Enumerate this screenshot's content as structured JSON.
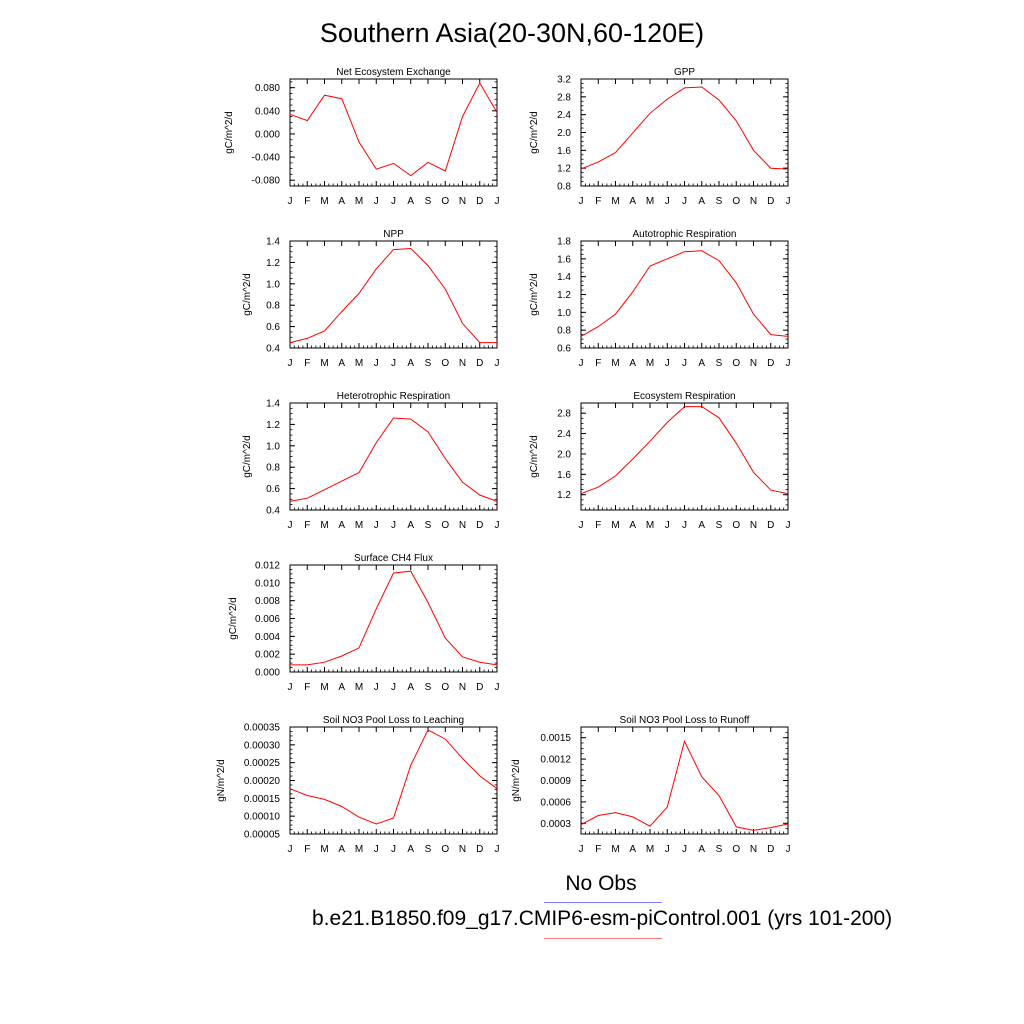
{
  "title": "Southern Asia(20-30N,60-120E)",
  "legend": {
    "obs_label": "No Obs",
    "obs_color": "#7b7bff",
    "model_label": "b.e21.B1850.f09_g17.CMIP6-esm-piControl.001 (yrs 101-200)",
    "model_color": "#ff0000"
  },
  "chart_data": [
    {
      "type": "line",
      "title": "Net Ecosystem Exchange",
      "ylabel": "gC/m^2/d",
      "categories": [
        "J",
        "F",
        "M",
        "A",
        "M",
        "J",
        "J",
        "A",
        "S",
        "O",
        "N",
        "D",
        "J"
      ],
      "ylim": [
        -0.09,
        0.095
      ],
      "yticks": [
        "0.080",
        "0.040",
        "0.000",
        "-0.040",
        "-0.080"
      ],
      "ytick_values": [
        0.08,
        0.04,
        0.0,
        -0.04,
        -0.08
      ],
      "series": [
        {
          "color": "#ff0000",
          "values": [
            0.034,
            0.023,
            0.067,
            0.061,
            -0.014,
            -0.061,
            -0.051,
            -0.072,
            -0.049,
            -0.064,
            0.03,
            0.088,
            0.037
          ]
        }
      ]
    },
    {
      "type": "line",
      "title": "GPP",
      "ylabel": "gC/m^2/d",
      "categories": [
        "J",
        "F",
        "M",
        "A",
        "M",
        "J",
        "J",
        "A",
        "S",
        "O",
        "N",
        "D",
        "J"
      ],
      "ylim": [
        0.8,
        3.2
      ],
      "yticks": [
        "3.2",
        "2.8",
        "2.4",
        "2.0",
        "1.6",
        "1.2",
        "0.8"
      ],
      "ytick_values": [
        3.2,
        2.8,
        2.4,
        2.0,
        1.6,
        1.2,
        0.8
      ],
      "series": [
        {
          "color": "#ff0000",
          "values": [
            1.18,
            1.34,
            1.55,
            1.99,
            2.43,
            2.75,
            3.0,
            3.02,
            2.73,
            2.26,
            1.6,
            1.2,
            1.18
          ]
        }
      ]
    },
    {
      "type": "line",
      "title": "NPP",
      "ylabel": "gC/m^2/d",
      "categories": [
        "J",
        "F",
        "M",
        "A",
        "M",
        "J",
        "J",
        "A",
        "S",
        "O",
        "N",
        "D",
        "J"
      ],
      "ylim": [
        0.4,
        1.4
      ],
      "yticks": [
        "1.4",
        "1.2",
        "1.0",
        "0.8",
        "0.6",
        "0.4"
      ],
      "ytick_values": [
        1.4,
        1.2,
        1.0,
        0.8,
        0.6,
        0.4
      ],
      "series": [
        {
          "color": "#ff0000",
          "values": [
            0.45,
            0.49,
            0.56,
            0.74,
            0.91,
            1.14,
            1.32,
            1.33,
            1.17,
            0.95,
            0.63,
            0.45,
            0.45
          ]
        }
      ]
    },
    {
      "type": "line",
      "title": "Autotrophic Respiration",
      "ylabel": "gC/m^2/d",
      "categories": [
        "J",
        "F",
        "M",
        "A",
        "M",
        "J",
        "J",
        "A",
        "S",
        "O",
        "N",
        "D",
        "J"
      ],
      "ylim": [
        0.6,
        1.8
      ],
      "yticks": [
        "1.8",
        "1.6",
        "1.4",
        "1.2",
        "1.0",
        "0.8",
        "0.6"
      ],
      "ytick_values": [
        1.8,
        1.6,
        1.4,
        1.2,
        1.0,
        0.8,
        0.6
      ],
      "series": [
        {
          "color": "#ff0000",
          "values": [
            0.73,
            0.84,
            0.98,
            1.23,
            1.52,
            1.6,
            1.68,
            1.69,
            1.58,
            1.33,
            0.98,
            0.75,
            0.73
          ]
        }
      ]
    },
    {
      "type": "line",
      "title": "Heterotrophic Respiration",
      "ylabel": "gC/m^2/d",
      "categories": [
        "J",
        "F",
        "M",
        "A",
        "M",
        "J",
        "J",
        "A",
        "S",
        "O",
        "N",
        "D",
        "J"
      ],
      "ylim": [
        0.4,
        1.4
      ],
      "yticks": [
        "1.4",
        "1.2",
        "1.0",
        "0.8",
        "0.6",
        "0.4"
      ],
      "ytick_values": [
        1.4,
        1.2,
        1.0,
        0.8,
        0.6,
        0.4
      ],
      "series": [
        {
          "color": "#ff0000",
          "values": [
            0.48,
            0.51,
            0.59,
            0.67,
            0.75,
            1.03,
            1.26,
            1.25,
            1.13,
            0.88,
            0.66,
            0.54,
            0.48
          ]
        }
      ]
    },
    {
      "type": "line",
      "title": "Ecosystem Respiration",
      "ylabel": "gC/m^2/d",
      "categories": [
        "J",
        "F",
        "M",
        "A",
        "M",
        "J",
        "J",
        "A",
        "S",
        "O",
        "N",
        "D",
        "J"
      ],
      "ylim": [
        0.9,
        3.0
      ],
      "yticks": [
        "2.8",
        "2.4",
        "2.0",
        "1.6",
        "1.2"
      ],
      "ytick_values": [
        2.8,
        2.4,
        2.0,
        1.6,
        1.2
      ],
      "series": [
        {
          "color": "#ff0000",
          "values": [
            1.22,
            1.35,
            1.57,
            1.9,
            2.25,
            2.62,
            2.93,
            2.93,
            2.71,
            2.21,
            1.64,
            1.29,
            1.22
          ]
        }
      ]
    },
    {
      "type": "line",
      "title": "Surface CH4 Flux",
      "ylabel": "gC/m^2/d",
      "categories": [
        "J",
        "F",
        "M",
        "A",
        "M",
        "J",
        "J",
        "A",
        "S",
        "O",
        "N",
        "D",
        "J"
      ],
      "ylim": [
        0.0,
        0.012
      ],
      "yticks": [
        "0.012",
        "0.010",
        "0.008",
        "0.006",
        "0.004",
        "0.002",
        "0.000"
      ],
      "ytick_values": [
        0.012,
        0.01,
        0.008,
        0.006,
        0.004,
        0.002,
        0.0
      ],
      "series": [
        {
          "color": "#ff0000",
          "values": [
            0.0008,
            0.0008,
            0.0011,
            0.0018,
            0.0027,
            0.0071,
            0.0111,
            0.0113,
            0.0078,
            0.0038,
            0.0017,
            0.0011,
            0.0008
          ]
        }
      ]
    },
    {
      "type": "line",
      "title": "Soil NO3 Pool Loss to Leaching",
      "ylabel": "gN/m^2/d",
      "categories": [
        "J",
        "F",
        "M",
        "A",
        "M",
        "J",
        "J",
        "A",
        "S",
        "O",
        "N",
        "D",
        "J"
      ],
      "ylim": [
        5e-05,
        0.00035
      ],
      "yticks": [
        "0.00035",
        "0.00030",
        "0.00025",
        "0.00020",
        "0.00015",
        "0.00010",
        "0.00005"
      ],
      "ytick_values": [
        0.00035,
        0.0003,
        0.00025,
        0.0002,
        0.00015,
        0.0001,
        5e-05
      ],
      "series": [
        {
          "color": "#ff0000",
          "values": [
            0.000177,
            0.000158,
            0.000147,
            0.000127,
            9.7e-05,
            7.8e-05,
            9.5e-05,
            0.000243,
            0.000342,
            0.000316,
            0.000262,
            0.000213,
            0.000177
          ]
        }
      ]
    },
    {
      "type": "line",
      "title": "Soil NO3 Pool Loss to Runoff",
      "ylabel": "gN/m^2/d",
      "categories": [
        "J",
        "F",
        "M",
        "A",
        "M",
        "J",
        "J",
        "A",
        "S",
        "O",
        "N",
        "D",
        "J"
      ],
      "ylim": [
        0.00015,
        0.00165
      ],
      "yticks": [
        "0.0015",
        "0.0012",
        "0.0009",
        "0.0006",
        "0.0003"
      ],
      "ytick_values": [
        0.0015,
        0.0012,
        0.0009,
        0.0006,
        0.0003
      ],
      "series": [
        {
          "color": "#ff0000",
          "values": [
            0.00028,
            0.00041,
            0.00045,
            0.00039,
            0.00026,
            0.00053,
            0.00145,
            0.00095,
            0.00069,
            0.00025,
            0.0002,
            0.00024,
            0.00029
          ]
        }
      ]
    }
  ]
}
